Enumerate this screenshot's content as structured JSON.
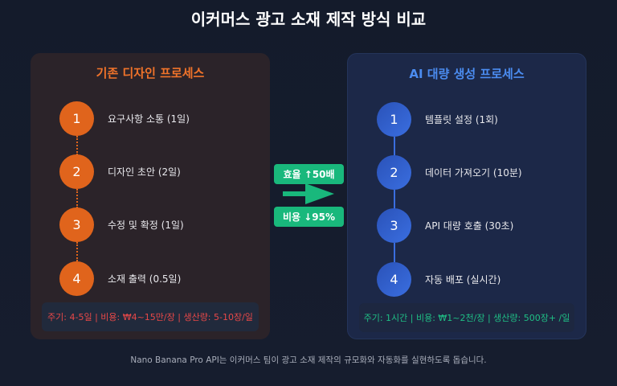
{
  "title": "이커머스 광고 소재 제작 방식 비교",
  "left": {
    "title": "기존 디자인 프로세스",
    "accent": "#e0641c",
    "steps": [
      {
        "num": "1",
        "label": "요구사항 소통 (1일)"
      },
      {
        "num": "2",
        "label": "디자인 초안 (2일)"
      },
      {
        "num": "3",
        "label": "수정 및 확정 (1일)"
      },
      {
        "num": "4",
        "label": "소재 출력 (0.5일)"
      }
    ],
    "footer": "주기: 4-5일 | 비용: ₩4~15만/장 | 생산량: 5-10장/일"
  },
  "right": {
    "title": "AI 대량 생성 프로세스",
    "accent": "#3a6ee0",
    "steps": [
      {
        "num": "1",
        "label": "템플릿 설정 (1회)"
      },
      {
        "num": "2",
        "label": "데이터 가져오기 (10분)"
      },
      {
        "num": "3",
        "label": "API 대량 호출 (30초)"
      },
      {
        "num": "4",
        "label": "자동 배포 (실시간)"
      }
    ],
    "footer": "주기: 1시간 | 비용: ₩1~2천/장 | 생산량: 500장+ /일"
  },
  "middle": {
    "efficiency": "효율 ↑50배",
    "cost": "비용 ↓95%",
    "accent": "#19b87c"
  },
  "caption": "Nano Banana Pro API는 이커머스 팀이 광고 소재 제작의 규모화와 자동화를 실현하도록 돕습니다."
}
